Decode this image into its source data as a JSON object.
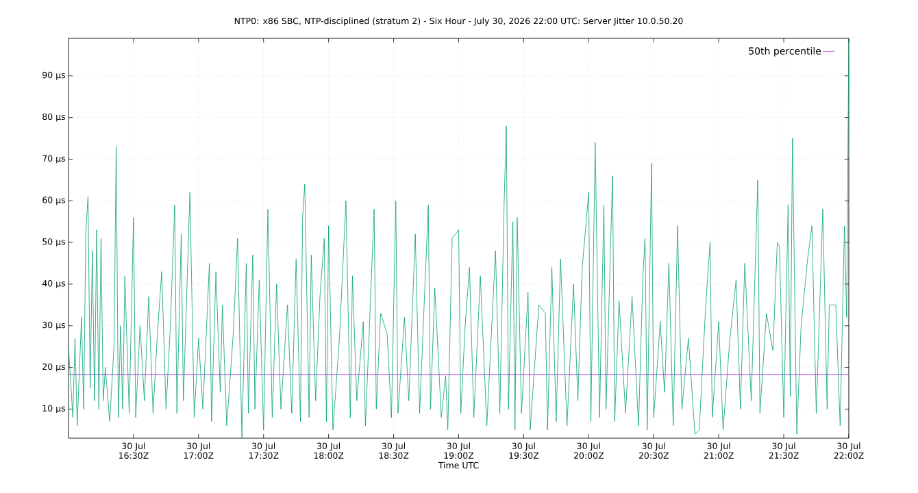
{
  "chart_data": {
    "type": "line",
    "title": "NTP0: x86 SBC, NTP-disciplined (stratum 2) - Six Hour - July 30, 2026 22:00 UTC: Server Jitter 10.0.50.20",
    "xlabel": "Time UTC",
    "xlim": [
      "2026-07-30T16:00",
      "2026-07-30T22:00"
    ],
    "ylim": [
      3,
      99
    ],
    "xticks": [
      {
        "value": "2026-07-30T16:30",
        "label": "30 Jul 16:30Z"
      },
      {
        "value": "2026-07-30T17:00",
        "label": "30 Jul 17:00Z"
      },
      {
        "value": "2026-07-30T17:30",
        "label": "30 Jul 17:30Z"
      },
      {
        "value": "2026-07-30T18:00",
        "label": "30 Jul 18:00Z"
      },
      {
        "value": "2026-07-30T18:30",
        "label": "30 Jul 18:30Z"
      },
      {
        "value": "2026-07-30T19:00",
        "label": "30 Jul 19:00Z"
      },
      {
        "value": "2026-07-30T19:30",
        "label": "30 Jul 19:30Z"
      },
      {
        "value": "2026-07-30T20:00",
        "label": "30 Jul 20:00Z"
      },
      {
        "value": "2026-07-30T20:30",
        "label": "30 Jul 20:30Z"
      },
      {
        "value": "2026-07-30T21:00",
        "label": "30 Jul 21:00Z"
      },
      {
        "value": "2026-07-30T21:30",
        "label": "30 Jul 21:30Z"
      },
      {
        "value": "2026-07-30T22:00",
        "label": "30 Jul 22:00Z"
      }
    ],
    "yticks": [
      {
        "value": 10,
        "label": "10 µs"
      },
      {
        "value": 20,
        "label": "20 µs"
      },
      {
        "value": 30,
        "label": "30 µs"
      },
      {
        "value": 40,
        "label": "40 µs"
      },
      {
        "value": 50,
        "label": "50 µs"
      },
      {
        "value": 60,
        "label": "60 µs"
      },
      {
        "value": 70,
        "label": "70 µs"
      },
      {
        "value": 80,
        "label": "80 µs"
      },
      {
        "value": 90,
        "label": "90 µs"
      }
    ],
    "grid": true,
    "legend": "top right",
    "line_style": "solid",
    "marker": "none",
    "series": [
      {
        "name": "50th percentile",
        "color": "#9400d3",
        "x": [
          "2026-07-30T16:00",
          "2026-07-30T22:00"
        ],
        "values": [
          18.3,
          18.3
        ]
      },
      {
        "color": "#009e73",
        "x": [
          "2026-07-30T16:00",
          "2026-07-30T16:02",
          "2026-07-30T16:03",
          "2026-07-30T16:04",
          "2026-07-30T16:06",
          "2026-07-30T16:07",
          "2026-07-30T16:08",
          "2026-07-30T16:09",
          "2026-07-30T16:10",
          "2026-07-30T16:11",
          "2026-07-30T16:12",
          "2026-07-30T16:13",
          "2026-07-30T16:14",
          "2026-07-30T16:15",
          "2026-07-30T16:16",
          "2026-07-30T16:17",
          "2026-07-30T16:19",
          "2026-07-30T16:21",
          "2026-07-30T16:22",
          "2026-07-30T16:23",
          "2026-07-30T16:24",
          "2026-07-30T16:25",
          "2026-07-30T16:26",
          "2026-07-30T16:28",
          "2026-07-30T16:30",
          "2026-07-30T16:31",
          "2026-07-30T16:33",
          "2026-07-30T16:35",
          "2026-07-30T16:37",
          "2026-07-30T16:39",
          "2026-07-30T16:41",
          "2026-07-30T16:43",
          "2026-07-30T16:45",
          "2026-07-30T16:47",
          "2026-07-30T16:49",
          "2026-07-30T16:50",
          "2026-07-30T16:52",
          "2026-07-30T16:53",
          "2026-07-30T16:56",
          "2026-07-30T16:58",
          "2026-07-30T17:00",
          "2026-07-30T17:02",
          "2026-07-30T17:05",
          "2026-07-30T17:06",
          "2026-07-30T17:08",
          "2026-07-30T17:10",
          "2026-07-30T17:11",
          "2026-07-30T17:13",
          "2026-07-30T17:16",
          "2026-07-30T17:18",
          "2026-07-30T17:20",
          "2026-07-30T17:22",
          "2026-07-30T17:23",
          "2026-07-30T17:25",
          "2026-07-30T17:26",
          "2026-07-30T17:28",
          "2026-07-30T17:30",
          "2026-07-30T17:32",
          "2026-07-30T17:34",
          "2026-07-30T17:36",
          "2026-07-30T17:38",
          "2026-07-30T17:41",
          "2026-07-30T17:43",
          "2026-07-30T17:45",
          "2026-07-30T17:47",
          "2026-07-30T17:48",
          "2026-07-30T17:49",
          "2026-07-30T17:51",
          "2026-07-30T17:52",
          "2026-07-30T17:54",
          "2026-07-30T17:56",
          "2026-07-30T17:58",
          "2026-07-30T17:59",
          "2026-07-30T18:00",
          "2026-07-30T18:02",
          "2026-07-30T18:05",
          "2026-07-30T18:08",
          "2026-07-30T18:10",
          "2026-07-30T18:11",
          "2026-07-30T18:13",
          "2026-07-30T18:16",
          "2026-07-30T18:17",
          "2026-07-30T18:21",
          "2026-07-30T18:22",
          "2026-07-30T18:24",
          "2026-07-30T18:27",
          "2026-07-30T18:29",
          "2026-07-30T18:31",
          "2026-07-30T18:32",
          "2026-07-30T18:35",
          "2026-07-30T18:37",
          "2026-07-30T18:40",
          "2026-07-30T18:42",
          "2026-07-30T18:46",
          "2026-07-30T18:47",
          "2026-07-30T18:49",
          "2026-07-30T18:52",
          "2026-07-30T18:54",
          "2026-07-30T18:55",
          "2026-07-30T18:57",
          "2026-07-30T19:00",
          "2026-07-30T19:01",
          "2026-07-30T19:03",
          "2026-07-30T19:05",
          "2026-07-30T19:07",
          "2026-07-30T19:10",
          "2026-07-30T19:13",
          "2026-07-30T19:17",
          "2026-07-30T19:19",
          "2026-07-30T19:21",
          "2026-07-30T19:22",
          "2026-07-30T19:23",
          "2026-07-30T19:25",
          "2026-07-30T19:26",
          "2026-07-30T19:27",
          "2026-07-30T19:29",
          "2026-07-30T19:32",
          "2026-07-30T19:33",
          "2026-07-30T19:37",
          "2026-07-30T19:40",
          "2026-07-30T19:41",
          "2026-07-30T19:43",
          "2026-07-30T19:45",
          "2026-07-30T19:47",
          "2026-07-30T19:50",
          "2026-07-30T19:53",
          "2026-07-30T19:55",
          "2026-07-30T19:57",
          "2026-07-30T20:00",
          "2026-07-30T20:01",
          "2026-07-30T20:03",
          "2026-07-30T20:05",
          "2026-07-30T20:07",
          "2026-07-30T20:08",
          "2026-07-30T20:11",
          "2026-07-30T20:12",
          "2026-07-30T20:14",
          "2026-07-30T20:17",
          "2026-07-30T20:20",
          "2026-07-30T20:23",
          "2026-07-30T20:25",
          "2026-07-30T20:26",
          "2026-07-30T20:27",
          "2026-07-30T20:29",
          "2026-07-30T20:30",
          "2026-07-30T20:33",
          "2026-07-30T20:35",
          "2026-07-30T20:37",
          "2026-07-30T20:39",
          "2026-07-30T20:41",
          "2026-07-30T20:43",
          "2026-07-30T20:46",
          "2026-07-30T20:49",
          "2026-07-30T20:51",
          "2026-07-30T20:54",
          "2026-07-30T20:56",
          "2026-07-30T20:57",
          "2026-07-30T21:00",
          "2026-07-30T21:02",
          "2026-07-30T21:05",
          "2026-07-30T21:08",
          "2026-07-30T21:10",
          "2026-07-30T21:12",
          "2026-07-30T21:15",
          "2026-07-30T21:18",
          "2026-07-30T21:19",
          "2026-07-30T21:22",
          "2026-07-30T21:25",
          "2026-07-30T21:27",
          "2026-07-30T21:28",
          "2026-07-30T21:30",
          "2026-07-30T21:32",
          "2026-07-30T21:33",
          "2026-07-30T21:34",
          "2026-07-30T21:36",
          "2026-07-30T21:38",
          "2026-07-30T21:41",
          "2026-07-30T21:43",
          "2026-07-30T21:45",
          "2026-07-30T21:48",
          "2026-07-30T21:50",
          "2026-07-30T21:51",
          "2026-07-30T21:54",
          "2026-07-30T21:56",
          "2026-07-30T21:58",
          "2026-07-30T21:59",
          "2026-07-30T22:00"
        ],
        "values": [
          25,
          8,
          27,
          6,
          32,
          10,
          53,
          61,
          15,
          48,
          12,
          53,
          10,
          51,
          12,
          20,
          7,
          25,
          73,
          8,
          30,
          10,
          42,
          9,
          56,
          8,
          30,
          12,
          37,
          9,
          28,
          43,
          10,
          30,
          59,
          9,
          52,
          12,
          62,
          8,
          27,
          10,
          45,
          7,
          43,
          14,
          35,
          6,
          28,
          51,
          3,
          45,
          9,
          47,
          10,
          41,
          5,
          58,
          8,
          40,
          10,
          35,
          9,
          46,
          7,
          56,
          64,
          8,
          47,
          12,
          37,
          51,
          7,
          54,
          5,
          27,
          60,
          8,
          42,
          12,
          31,
          6,
          58,
          10,
          33,
          28,
          8,
          60,
          9,
          32,
          12,
          52,
          9,
          59,
          10,
          39,
          8,
          18,
          5,
          51,
          53,
          9,
          30,
          44,
          8,
          42,
          6,
          48,
          9,
          60,
          78,
          10,
          55,
          5,
          56,
          9,
          38,
          5,
          35,
          33,
          5,
          44,
          7,
          46,
          6,
          40,
          12,
          44,
          62,
          7,
          74,
          8,
          59,
          10,
          66,
          7,
          36,
          9,
          37,
          6,
          42,
          51,
          5,
          69,
          8,
          31,
          14,
          45,
          6,
          54,
          10,
          27,
          4,
          5,
          35,
          50,
          8,
          31,
          5,
          26,
          41,
          10,
          45,
          12,
          65,
          9,
          33,
          24,
          50,
          49,
          8,
          59,
          13,
          75,
          4,
          30,
          46,
          54,
          9,
          58,
          10,
          35,
          35,
          6,
          54,
          32,
          99
        ]
      }
    ]
  }
}
